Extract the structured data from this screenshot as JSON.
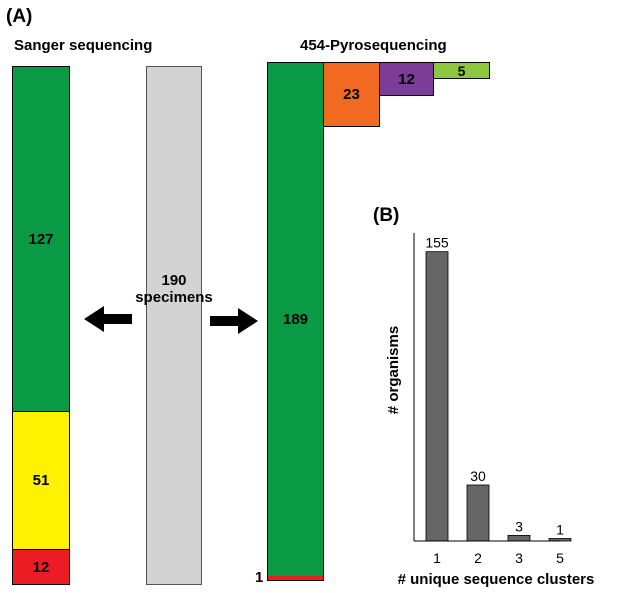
{
  "panel_a": {
    "label": "(A)",
    "sanger": {
      "title": "Sanger sequencing",
      "segments": [
        {
          "value": "127",
          "color": "#0a9a46"
        },
        {
          "value": "51",
          "color": "#fff200"
        },
        {
          "value": "12",
          "color": "#ed1c24"
        }
      ]
    },
    "specimens": {
      "count": "190",
      "label": "specimens",
      "color": "#d3d3d3"
    },
    "pyro": {
      "title": "454-Pyrosequencing",
      "main_value": "189",
      "main_color": "#0a9a46",
      "bottom_value": "1",
      "bottom_color": "#ed1c24",
      "side_blocks": [
        {
          "value": "23",
          "color": "#f26a22"
        },
        {
          "value": "12",
          "color": "#7d3c97"
        },
        {
          "value": "5",
          "color": "#8dc63f"
        }
      ]
    }
  },
  "panel_b": {
    "label": "(B)",
    "chart_data": {
      "type": "bar",
      "categories": [
        "1",
        "2",
        "3",
        "5"
      ],
      "values": [
        155,
        30,
        3,
        1
      ],
      "xlabel": "# unique sequence clusters",
      "ylabel": "# organisms",
      "ylim": [
        0,
        165
      ],
      "bar_color": "#666666",
      "grid": false
    }
  }
}
